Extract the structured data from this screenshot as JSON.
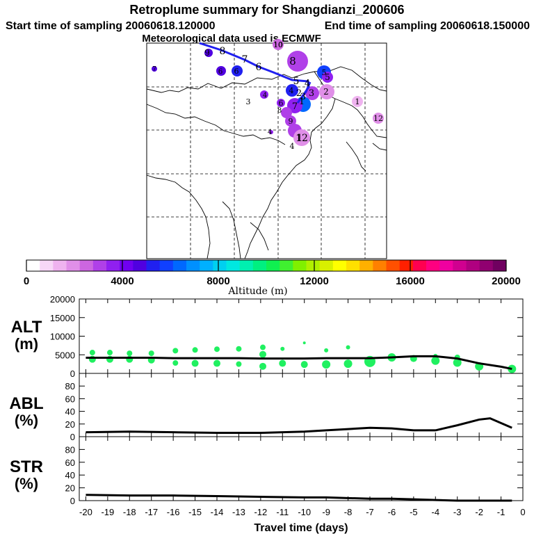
{
  "header": {
    "title": "Retroplume summary for Shangdianzi_200606",
    "start_label": "Start time of sampling 20060618.120000",
    "end_label": "End time of sampling 20060618.150000",
    "met_label": "Meteorological data used is ECMWF"
  },
  "colorbar": {
    "tick_labels": [
      "0",
      "4000",
      "8000",
      "12000",
      "16000",
      "20000"
    ],
    "axis_label": "Altitude (m)",
    "colors": [
      "#ffffff",
      "#f7d7f7",
      "#efb3ef",
      "#e08fe8",
      "#cc66e0",
      "#b040e8",
      "#9020f0",
      "#7000f0",
      "#5000e0",
      "#2020f0",
      "#1040ff",
      "#0068ff",
      "#0090ff",
      "#00b0ff",
      "#00d0f0",
      "#00e8e0",
      "#00f0b0",
      "#00f080",
      "#10f050",
      "#40f030",
      "#80f000",
      "#b0f000",
      "#d8f000",
      "#ffff00",
      "#ffe000",
      "#ffb000",
      "#ff8000",
      "#ff5000",
      "#ff2000",
      "#ff0050",
      "#ff0080",
      "#f000a0",
      "#d00090",
      "#b00080",
      "#900070",
      "#700060"
    ]
  },
  "map": {
    "trajectory_labels": [
      {
        "text": "8"
      },
      {
        "text": "7"
      },
      {
        "text": "6"
      },
      {
        "text": "5"
      },
      {
        "text": "4"
      },
      {
        "text": "3"
      },
      {
        "text": "2"
      },
      {
        "text": "1"
      }
    ],
    "cluster_labels": [
      {
        "text": "10"
      },
      {
        "text": "9"
      },
      {
        "text": "8"
      },
      {
        "text": "7"
      },
      {
        "text": "6"
      },
      {
        "text": "6"
      },
      {
        "text": "5"
      },
      {
        "text": "5"
      },
      {
        "text": "4"
      },
      {
        "text": "4"
      },
      {
        "text": "3"
      },
      {
        "text": "3"
      },
      {
        "text": "2"
      },
      {
        "text": "1"
      },
      {
        "text": "12"
      },
      {
        "text": "1"
      },
      {
        "text": "9"
      },
      {
        "text": "8"
      },
      {
        "text": "10"
      },
      {
        "text": "12"
      },
      {
        "text": "6"
      },
      {
        "text": "7"
      },
      {
        "text": "4"
      },
      {
        "text": "4"
      }
    ]
  },
  "chart_data": [
    {
      "type": "scatter",
      "panel": "ALT",
      "ylabel": "ALT",
      "yunit": "(m)",
      "ylim": [
        0,
        20000
      ],
      "yticks": [
        "20000",
        "15000",
        "10000",
        "5000",
        "0"
      ],
      "xlim": [
        -20,
        0
      ],
      "line_x": [
        -20,
        -19,
        -18,
        -17,
        -16,
        -15,
        -14,
        -13,
        -12,
        -11,
        -10,
        -9,
        -8,
        -7,
        -6,
        -5,
        -4,
        -3,
        -2,
        -1,
        -0.5
      ],
      "line_y": [
        4200,
        4200,
        4200,
        4200,
        4100,
        4100,
        4100,
        4100,
        4000,
        4000,
        4000,
        4100,
        4100,
        4100,
        4300,
        4600,
        4600,
        4000,
        2700,
        1800,
        1200
      ],
      "scatter_x": [
        -19.7,
        -19.7,
        -18.9,
        -18.9,
        -18,
        -18,
        -17,
        -17,
        -15.9,
        -15.9,
        -15,
        -15,
        -14,
        -14,
        -13,
        -13,
        -11.9,
        -11.9,
        -11.9,
        -11,
        -11,
        -10,
        -10,
        -9,
        -9,
        -8,
        -8,
        -7,
        -6,
        -5,
        -4,
        -4,
        -3,
        -3,
        -2,
        -0.5
      ],
      "scatter_y": [
        5600,
        3800,
        5600,
        3800,
        5400,
        3800,
        5400,
        3600,
        6100,
        2800,
        6300,
        2700,
        6500,
        2700,
        6600,
        2500,
        7000,
        5100,
        1900,
        6600,
        2700,
        8200,
        2400,
        6200,
        2400,
        7000,
        2600,
        3200,
        4300,
        4000,
        4700,
        3400,
        4300,
        2900,
        1900,
        1200
      ],
      "scatter_r": [
        4,
        5,
        4,
        5,
        4,
        5,
        4,
        5,
        4,
        4,
        4,
        5,
        4,
        5,
        4,
        4,
        4,
        5,
        5,
        3,
        5,
        2,
        5,
        3,
        6,
        3,
        6,
        8,
        6,
        5,
        3,
        6,
        4,
        6,
        6,
        6
      ]
    },
    {
      "type": "line",
      "panel": "ABL",
      "ylabel": "ABL",
      "yunit": "(%)",
      "ylim": [
        0,
        100
      ],
      "yticks": [
        "80",
        "60",
        "40",
        "20",
        "0"
      ],
      "xlim": [
        -20,
        0
      ],
      "x": [
        -20,
        -18,
        -16,
        -14,
        -12,
        -10,
        -9,
        -8,
        -7,
        -6,
        -5,
        -4,
        -3,
        -2,
        -1.5,
        -0.5
      ],
      "y": [
        7,
        8,
        7,
        6,
        6,
        8,
        10,
        12,
        14,
        13,
        10,
        10,
        18,
        27,
        29,
        14
      ]
    },
    {
      "type": "line",
      "panel": "STR",
      "ylabel": "STR",
      "yunit": "(%)",
      "ylim": [
        0,
        100
      ],
      "yticks": [
        "80",
        "60",
        "40",
        "20",
        "0"
      ],
      "xlim": [
        -20,
        0
      ],
      "xlabel": "Travel time (days)",
      "xticks": [
        "-20",
        "-19",
        "-18",
        "-17",
        "-16",
        "-15",
        "-14",
        "-13",
        "-12",
        "-11",
        "-10",
        "-9",
        "-8",
        "-7",
        "-6",
        "-5",
        "-4",
        "-3",
        "-2",
        "-1",
        "0"
      ],
      "x": [
        -20,
        -18,
        -16,
        -14,
        -12,
        -10,
        -9,
        -8,
        -7,
        -6,
        -5,
        -4,
        -3,
        -2,
        -1,
        -0.5
      ],
      "y": [
        9,
        8,
        8,
        7,
        6,
        5,
        5,
        4,
        3,
        3,
        2,
        1,
        0,
        0,
        0,
        0
      ]
    }
  ]
}
